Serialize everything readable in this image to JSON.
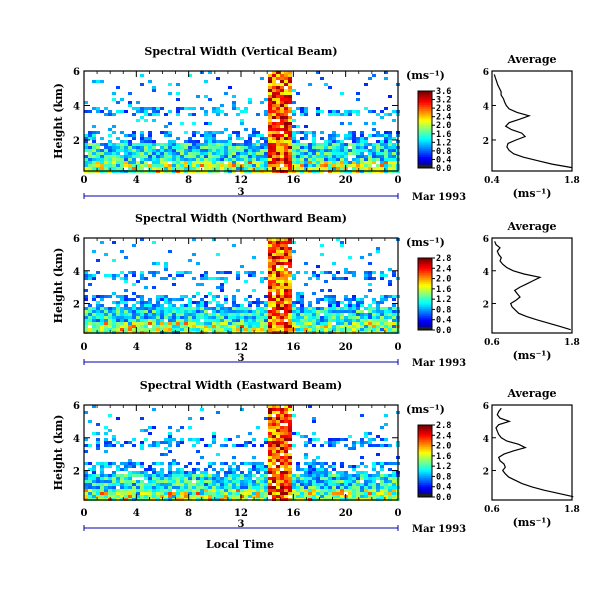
{
  "figure": {
    "xlabel_bottom": "Local Time",
    "cbar_unit": "(ms⁻¹)",
    "avg_title": "Average",
    "avg_xlabel": "(ms⁻¹)",
    "day_marker": "3",
    "month_label": "Mar 1993"
  },
  "chart_data": [
    {
      "type": "heatmap",
      "title": "Spectral Width (Vertical Beam)",
      "ylabel": "Height (km)",
      "xlim": [
        0,
        24
      ],
      "xticks": [
        "0",
        "4",
        "8",
        "12",
        "16",
        "20",
        "0"
      ],
      "ylim": [
        0.2,
        6
      ],
      "yticks": [
        "2",
        "4",
        "6"
      ],
      "colorbar": {
        "ticks": [
          "0.0",
          "0.4",
          "0.8",
          "1.2",
          "1.6",
          "2.0",
          "2.4",
          "2.8",
          "3.2",
          "3.6"
        ],
        "max": 3.6
      },
      "average": {
        "title": "Average",
        "xticks": [
          "0.4",
          "1.8"
        ],
        "xlim": [
          0.4,
          1.8
        ],
        "height": [
          0.4,
          0.6,
          0.8,
          1.0,
          1.2,
          1.4,
          1.6,
          1.8,
          2.0,
          2.2,
          2.4,
          2.6,
          2.8,
          3.0,
          3.2,
          3.4,
          3.6,
          3.8,
          4.0,
          4.2,
          4.4,
          4.6,
          4.8,
          5.0,
          5.2,
          5.4,
          5.6,
          5.8
        ],
        "value": [
          1.8,
          1.45,
          1.2,
          0.95,
          0.78,
          0.7,
          0.66,
          0.68,
          0.82,
          0.98,
          0.92,
          0.74,
          0.64,
          0.7,
          0.88,
          1.05,
          0.84,
          0.7,
          0.65,
          0.62,
          0.6,
          0.56,
          0.56,
          0.53,
          0.5,
          0.48,
          0.46,
          0.44
        ]
      }
    },
    {
      "type": "heatmap",
      "title": "Spectral Width (Northward Beam)",
      "ylabel": "Height (km)",
      "xlim": [
        0,
        24
      ],
      "xticks": [
        "0",
        "4",
        "8",
        "12",
        "16",
        "20",
        "0"
      ],
      "ylim": [
        0.2,
        6
      ],
      "yticks": [
        "2",
        "4",
        "6"
      ],
      "colorbar": {
        "ticks": [
          "0.0",
          "0.4",
          "0.8",
          "1.2",
          "1.6",
          "2.0",
          "2.4",
          "2.8"
        ],
        "max": 2.8
      },
      "average": {
        "title": "Average",
        "xticks": [
          "0.6",
          "1.8"
        ],
        "xlim": [
          0.6,
          1.8
        ],
        "height": [
          0.4,
          0.6,
          0.8,
          1.0,
          1.2,
          1.4,
          1.6,
          1.8,
          2.0,
          2.2,
          2.4,
          2.6,
          2.8,
          3.0,
          3.2,
          3.4,
          3.6,
          3.8,
          4.0,
          4.2,
          4.4,
          4.6,
          4.8,
          5.0,
          5.2,
          5.4,
          5.6,
          5.8
        ],
        "value": [
          1.78,
          1.62,
          1.45,
          1.28,
          1.12,
          1.0,
          0.95,
          0.9,
          0.88,
          0.96,
          1.02,
          0.98,
          0.94,
          1.02,
          1.12,
          1.22,
          1.32,
          1.08,
          0.92,
          0.82,
          0.76,
          0.72,
          0.74,
          0.7,
          0.68,
          0.72,
          0.66,
          0.64
        ]
      }
    },
    {
      "type": "heatmap",
      "title": "Spectral Width (Eastward Beam)",
      "ylabel": "Height (km)",
      "xlim": [
        0,
        24
      ],
      "xticks": [
        "0",
        "4",
        "8",
        "12",
        "16",
        "20",
        "0"
      ],
      "ylim": [
        0.2,
        6
      ],
      "yticks": [
        "2",
        "4",
        "6"
      ],
      "colorbar": {
        "ticks": [
          "0.0",
          "0.4",
          "0.8",
          "1.2",
          "1.6",
          "2.0",
          "2.4",
          "2.8"
        ],
        "max": 2.8
      },
      "average": {
        "title": "Average",
        "xticks": [
          "0.6",
          "1.8"
        ],
        "xlim": [
          0.6,
          1.8
        ],
        "height": [
          0.4,
          0.6,
          0.8,
          1.0,
          1.2,
          1.4,
          1.6,
          1.8,
          2.0,
          2.2,
          2.4,
          2.6,
          2.8,
          3.0,
          3.2,
          3.4,
          3.6,
          3.8,
          4.0,
          4.2,
          4.4,
          4.6,
          4.8,
          5.0,
          5.2,
          5.4,
          5.6,
          5.8
        ],
        "value": [
          1.82,
          1.6,
          1.38,
          1.2,
          1.05,
          0.95,
          0.85,
          0.8,
          0.76,
          0.8,
          0.78,
          0.72,
          0.7,
          0.78,
          0.92,
          1.1,
          1.0,
          0.82,
          0.74,
          0.7,
          0.68,
          0.66,
          0.7,
          0.86,
          0.72,
          0.68,
          0.7,
          0.74
        ]
      }
    }
  ]
}
